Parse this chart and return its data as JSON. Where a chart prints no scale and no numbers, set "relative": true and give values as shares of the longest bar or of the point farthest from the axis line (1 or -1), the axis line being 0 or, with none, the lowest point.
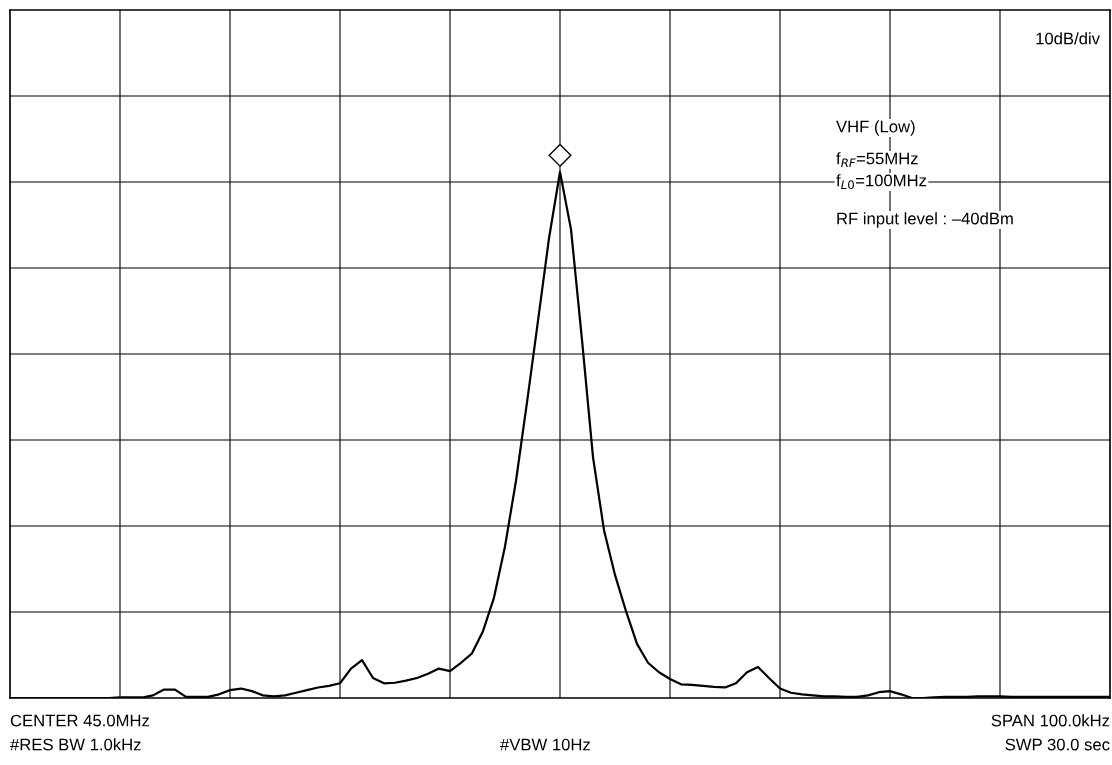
{
  "chart_data": {
    "type": "line",
    "relative": true,
    "categories": [
      null,
      null,
      null,
      null,
      null,
      null,
      null,
      null,
      null,
      null,
      null,
      null,
      null,
      null,
      null,
      null,
      null,
      null,
      null,
      null,
      null,
      null,
      null,
      null,
      null,
      null,
      null,
      null,
      null,
      null,
      null,
      null,
      null,
      null,
      null,
      null,
      null,
      null,
      null,
      null,
      null,
      null,
      null,
      null,
      null,
      null,
      null,
      null,
      null,
      null,
      null,
      null,
      null,
      null,
      null,
      null,
      null,
      null,
      null,
      null,
      null,
      null,
      null,
      null,
      null,
      null,
      null,
      null,
      null,
      null,
      null,
      null,
      null,
      null,
      null,
      null,
      null,
      null,
      null,
      null,
      null,
      null,
      null,
      null,
      null,
      null,
      null,
      null,
      null,
      null,
      null,
      null,
      null,
      null,
      null,
      null,
      null,
      null,
      null,
      null,
      null
    ],
    "grid": true,
    "series": [
      {
        "color": "#000000",
        "values": [
          0,
          0,
          0,
          0,
          0,
          0,
          0,
          0,
          0,
          0,
          0.001,
          0.001,
          0.001,
          0.005,
          0.016,
          0.016,
          0.002,
          0.002,
          0.002,
          0.007,
          0.015,
          0.018,
          0.013,
          0.005,
          0.003,
          0.005,
          0.01,
          0.015,
          0.02,
          0.023,
          0.028,
          0.056,
          0.072,
          0.038,
          0.028,
          0.029,
          0.033,
          0.038,
          0.046,
          0.056,
          0.051,
          0.067,
          0.085,
          0.127,
          0.191,
          0.288,
          0.413,
          0.562,
          0.717,
          0.874,
          1,
          0.891,
          0.681,
          0.458,
          0.319,
          0.234,
          0.165,
          0.103,
          0.067,
          0.049,
          0.036,
          0.026,
          0.025,
          0.023,
          0.021,
          0.02,
          0.028,
          0.049,
          0.059,
          0.038,
          0.018,
          0.01,
          0.007,
          0.005,
          0.003,
          0.003,
          0.002,
          0.002,
          0.005,
          0.011,
          0.013,
          0.007,
          0,
          0,
          0.001,
          0.002,
          0.002,
          0.002,
          0.003,
          0.003,
          0.003,
          0.002,
          0.002,
          0.002,
          0.002,
          0.002,
          0.002,
          0.002,
          0.002,
          0.002,
          0.002
        ]
      }
    ],
    "annotations": [
      "10dB/div",
      "VHF (Low)",
      "f$_{RF}$=55MHz",
      "f$_{L0}$=100MHz",
      "RF input level : –40dBm",
      "CENTER 45.0MHz",
      "#RES BW 1.0kHz",
      "#VBW 10Hz",
      "SPAN 100.0kHz",
      "SWP 30.0 sec"
    ]
  }
}
